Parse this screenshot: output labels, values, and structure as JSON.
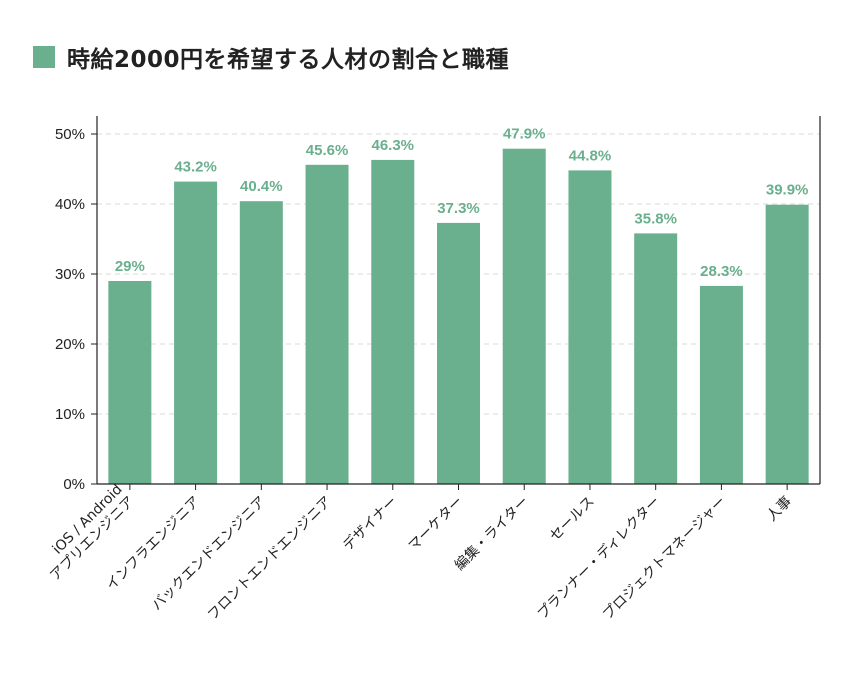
{
  "title": "時給2000円を希望する人材の割合と職種",
  "colors": {
    "bar": "#6aaf8e",
    "label": "#6aaf8e",
    "axis": "#222222",
    "grid": "#d9d9d9"
  },
  "chart_data": {
    "type": "bar",
    "title": "時給2000円を希望する人材の割合と職種",
    "categories": [
      [
        "iOS / Android",
        "アプリエンジニア"
      ],
      [
        "インフラエンジニア"
      ],
      [
        "バックエンドエンジニア"
      ],
      [
        "フロントエンドエンジニア"
      ],
      [
        "デザイナー"
      ],
      [
        "マーケター"
      ],
      [
        "編集・ライター"
      ],
      [
        "セールス"
      ],
      [
        "プランナー・ディレクター"
      ],
      [
        "プロジェクトマネージャー"
      ],
      [
        "人事"
      ]
    ],
    "values": [
      29,
      43.2,
      40.4,
      45.6,
      46.3,
      37.3,
      47.9,
      44.8,
      35.8,
      28.3,
      39.9
    ],
    "data_labels": [
      "29%",
      "43.2%",
      "40.4%",
      "45.6%",
      "46.3%",
      "37.3%",
      "47.9%",
      "44.8%",
      "35.8%",
      "28.3%",
      "39.9%"
    ],
    "yticks": [
      0,
      10,
      20,
      30,
      40,
      50
    ],
    "ytick_labels": [
      "0%",
      "10%",
      "20%",
      "30%",
      "40%",
      "50%"
    ],
    "ylim": [
      0,
      50
    ],
    "grid": true,
    "xlabel": "",
    "ylabel": ""
  }
}
